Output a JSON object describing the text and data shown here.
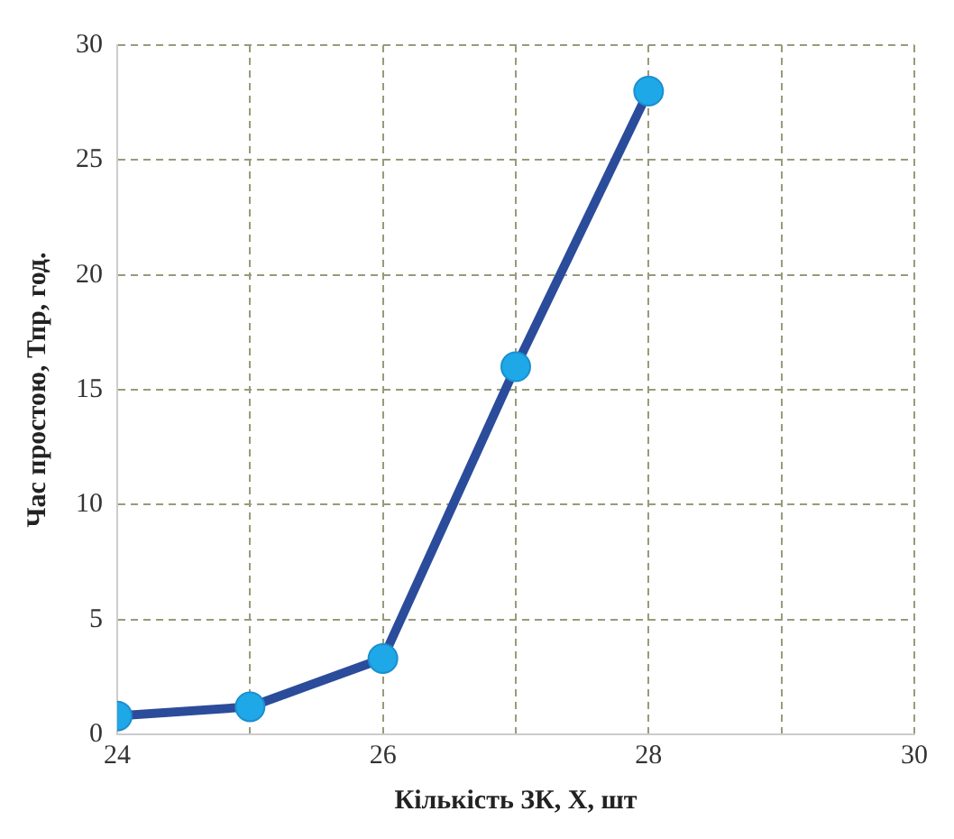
{
  "chart_data": {
    "type": "line",
    "xlabel": "Кількість ЗК, X, шт",
    "ylabel": "Час простою, Тпр, год.",
    "x": [
      24,
      25,
      26,
      27,
      28
    ],
    "series": [
      {
        "color": "#2b4c9b",
        "values": [
          0.8,
          1.2,
          3.3,
          16,
          28
        ]
      }
    ],
    "xlim": [
      24,
      30
    ],
    "xticks": [
      24,
      {
        "value": 25,
        "label": null
      },
      26,
      {
        "value": 27,
        "label": null
      },
      28,
      {
        "value": 29,
        "label": null
      },
      30
    ],
    "ylim": [
      0,
      30
    ],
    "yticks": [
      0,
      5,
      10,
      15,
      20,
      25,
      30
    ],
    "grid": true,
    "legend": false,
    "marker": "circle",
    "line_style": "solid"
  }
}
